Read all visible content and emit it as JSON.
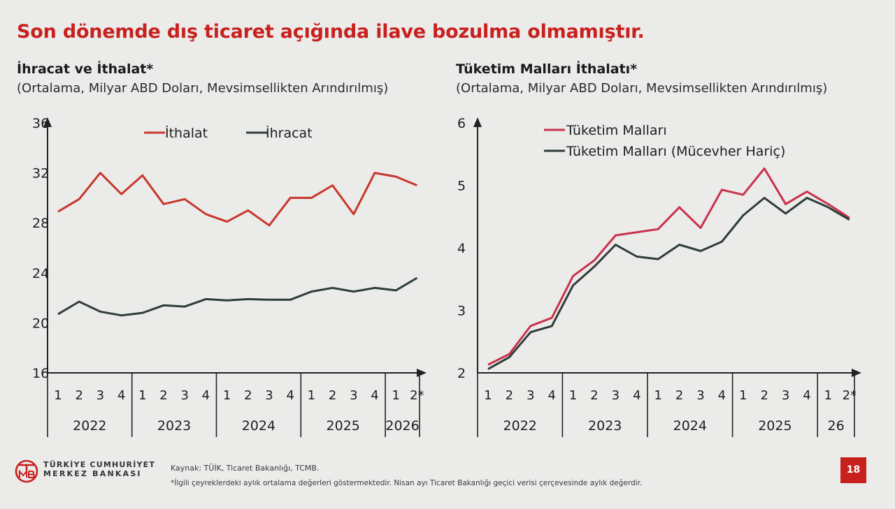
{
  "slide_title": "Son dönemde dış ticaret açığında ilave bozulma olmamıştır.",
  "footer": {
    "bank_line1": "TÜRKİYE CUMHURİYET",
    "bank_line2": "MERKEZ BANKASI",
    "source": "Kaynak: TÜİK, Ticaret Bakanlığı, TCMB.",
    "note": "*İlgili çeyreklerdeki aylık ortalama değerleri göstermektedir. Nisan ayı Ticaret Bakanlığı geçici verisi çerçevesinde aylık değerdir.",
    "page": "18",
    "accent": "#c8201d"
  },
  "chart_data": [
    {
      "type": "line",
      "title": "İhracat ve İthalat*",
      "subtitle": "(Ortalama, Milyar ABD Doları, Mevsimsellikten Arındırılmış)",
      "categories": [
        "1",
        "2",
        "3",
        "4",
        "1",
        "2",
        "3",
        "4",
        "1",
        "2",
        "3",
        "4",
        "1",
        "2",
        "3",
        "4",
        "1",
        "2*"
      ],
      "groups": [
        {
          "label": "2022",
          "span": 4
        },
        {
          "label": "2023",
          "span": 4
        },
        {
          "label": "2024",
          "span": 4
        },
        {
          "label": "2025",
          "span": 4
        },
        {
          "label": "2026",
          "span": 2
        }
      ],
      "ylim": [
        16,
        36
      ],
      "yticks": [
        "16",
        "20",
        "24",
        "28",
        "32",
        "36"
      ],
      "legend_position": "top",
      "series": [
        {
          "name": "İthalat",
          "color": "#c8372d",
          "values": [
            28.9,
            29.9,
            32.0,
            30.3,
            31.8,
            29.5,
            29.9,
            28.7,
            28.1,
            29.0,
            27.8,
            30.0,
            30.0,
            31.0,
            28.7,
            32.0,
            31.7,
            31.0
          ]
        },
        {
          "name": "İhracat",
          "color": "#2e3c38",
          "values": [
            20.7,
            21.7,
            20.9,
            20.6,
            20.8,
            21.4,
            21.3,
            21.9,
            21.8,
            21.9,
            21.85,
            21.85,
            22.5,
            22.8,
            22.5,
            22.8,
            22.6,
            23.6
          ]
        }
      ]
    },
    {
      "type": "line",
      "title": "Tüketim Malları İthalatı*",
      "subtitle": "(Ortalama, Milyar ABD Doları, Mevsimsellikten Arındırılmış)",
      "categories": [
        "1",
        "2",
        "3",
        "4",
        "1",
        "2",
        "3",
        "4",
        "1",
        "2",
        "3",
        "4",
        "1",
        "2",
        "3",
        "4",
        "1",
        "2*"
      ],
      "groups": [
        {
          "label": "2022",
          "span": 4
        },
        {
          "label": "2023",
          "span": 4
        },
        {
          "label": "2024",
          "span": 4
        },
        {
          "label": "2025",
          "span": 4
        },
        {
          "label": "26",
          "span": 2
        }
      ],
      "ylim": [
        2,
        6
      ],
      "yticks": [
        "2",
        "3",
        "4",
        "5",
        "6"
      ],
      "legend_position": "top-left",
      "series": [
        {
          "name": "Tüketim Malları",
          "color": "#c8324a",
          "values": [
            2.13,
            2.3,
            2.75,
            2.88,
            3.55,
            3.8,
            4.2,
            4.25,
            4.3,
            4.65,
            4.32,
            4.93,
            4.85,
            5.27,
            4.7,
            4.9,
            4.7,
            4.48
          ]
        },
        {
          "name": "Tüketim Malları (Mücevher Hariç)",
          "color": "#2e3c38",
          "values": [
            2.06,
            2.25,
            2.65,
            2.75,
            3.4,
            3.7,
            4.05,
            3.86,
            3.82,
            4.05,
            3.95,
            4.1,
            4.52,
            4.8,
            4.55,
            4.8,
            4.65,
            4.45
          ]
        }
      ]
    }
  ]
}
